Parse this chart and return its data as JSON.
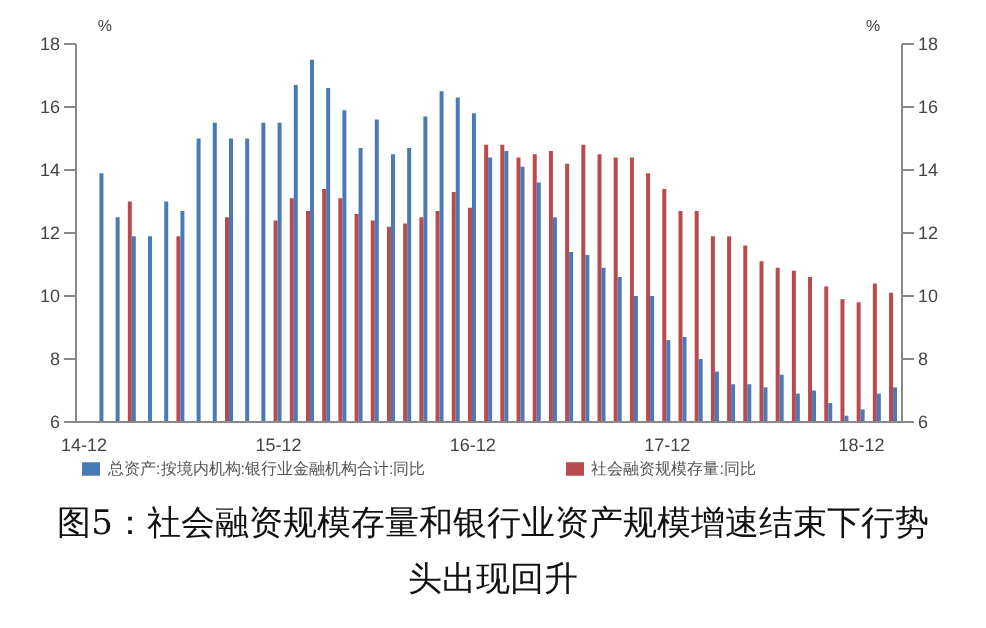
{
  "chart_data": {
    "type": "bar",
    "title": "图5：社会融资规模存量和银行业资产规模增速结束下行势头出现回升",
    "ylabel": "%",
    "y2label": "%",
    "categories": [
      "14-12",
      null,
      null,
      null,
      null,
      null,
      null,
      null,
      null,
      null,
      null,
      null,
      "15-12",
      null,
      null,
      null,
      null,
      null,
      null,
      null,
      null,
      null,
      null,
      null,
      "16-12",
      null,
      null,
      null,
      null,
      null,
      null,
      null,
      null,
      null,
      null,
      null,
      "17-12",
      null,
      null,
      null,
      null,
      null,
      null,
      null,
      null,
      null,
      null,
      null,
      "18-12",
      null,
      null
    ],
    "series": [
      {
        "name": "社会融资规模存量:同比",
        "color": "#b84a50",
        "values": [
          null,
          null,
          null,
          13.0,
          null,
          null,
          11.9,
          null,
          null,
          12.5,
          null,
          null,
          12.4,
          13.1,
          12.7,
          13.4,
          13.1,
          12.6,
          12.4,
          12.2,
          12.3,
          12.5,
          12.7,
          13.3,
          12.8,
          14.8,
          14.8,
          14.4,
          14.5,
          14.6,
          14.2,
          14.8,
          14.5,
          14.4,
          14.4,
          13.9,
          13.4,
          12.7,
          12.7,
          11.9,
          11.9,
          11.6,
          11.1,
          10.9,
          10.8,
          10.6,
          10.3,
          9.9,
          9.8,
          10.4,
          10.1
        ]
      },
      {
        "name": "总资产:按境内机构:银行业金融机构合计:同比",
        "color": "#4a7ab5",
        "values": [
          null,
          13.9,
          12.5,
          11.9,
          11.9,
          13.0,
          12.7,
          15.0,
          15.5,
          15.0,
          15.0,
          15.5,
          15.5,
          16.7,
          17.5,
          16.6,
          15.9,
          14.7,
          15.6,
          14.5,
          14.7,
          15.7,
          16.5,
          16.3,
          15.8,
          14.4,
          14.6,
          14.1,
          13.6,
          12.5,
          11.4,
          11.3,
          10.9,
          10.6,
          10.0,
          10.0,
          8.6,
          8.7,
          8.0,
          7.6,
          7.2,
          7.2,
          7.1,
          7.5,
          6.9,
          7.0,
          6.6,
          6.2,
          6.4,
          6.9,
          7.1
        ]
      }
    ],
    "ylim": [
      6,
      18
    ],
    "yticks": [
      6,
      8,
      10,
      12,
      14,
      16,
      18
    ],
    "y2lim": [
      6,
      18
    ],
    "y2ticks": [
      6,
      8,
      10,
      12,
      14,
      16,
      18
    ],
    "grid": false,
    "legend": "bottom"
  }
}
